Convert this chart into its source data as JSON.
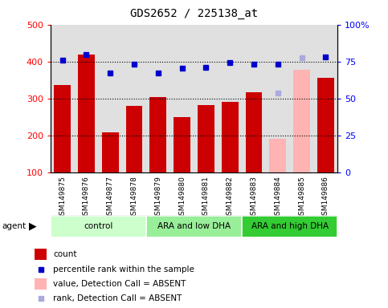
{
  "title": "GDS2652 / 225138_at",
  "samples": [
    "GSM149875",
    "GSM149876",
    "GSM149877",
    "GSM149878",
    "GSM149879",
    "GSM149880",
    "GSM149881",
    "GSM149882",
    "GSM149883",
    "GSM149884",
    "GSM149885",
    "GSM149886"
  ],
  "counts": [
    336,
    420,
    209,
    281,
    305,
    250,
    283,
    290,
    317,
    null,
    null,
    357
  ],
  "counts_absent": [
    null,
    null,
    null,
    null,
    null,
    null,
    null,
    null,
    null,
    191,
    378,
    null
  ],
  "percentile_ranks": [
    403,
    420,
    370,
    392,
    370,
    382,
    385,
    397,
    392,
    392,
    null,
    413
  ],
  "percentile_ranks_absent": [
    null,
    null,
    null,
    null,
    null,
    null,
    null,
    null,
    null,
    null,
    410,
    null
  ],
  "rank_absent": [
    null,
    null,
    null,
    null,
    null,
    null,
    null,
    null,
    null,
    316,
    null,
    null
  ],
  "groups": [
    {
      "label": "control",
      "start": 0,
      "end": 3,
      "color": "#ccffcc"
    },
    {
      "label": "ARA and low DHA",
      "start": 4,
      "end": 7,
      "color": "#99ee99"
    },
    {
      "label": "ARA and high DHA",
      "start": 8,
      "end": 11,
      "color": "#33cc33"
    }
  ],
  "ylim_left": [
    100,
    500
  ],
  "ylim_right": [
    0,
    100
  ],
  "bar_color": "#cc0000",
  "bar_absent_color": "#ffb3b3",
  "dot_color": "#0000cc",
  "dot_absent_color": "#aaaadd",
  "grid_color": "#000000",
  "plot_bg_color": "#e0e0e0",
  "sample_bg_color": "#c8c8c8",
  "legend_items": [
    {
      "label": "count",
      "color": "#cc0000",
      "type": "bar"
    },
    {
      "label": "percentile rank within the sample",
      "color": "#0000cc",
      "type": "dot"
    },
    {
      "label": "value, Detection Call = ABSENT",
      "color": "#ffb3b3",
      "type": "bar"
    },
    {
      "label": "rank, Detection Call = ABSENT",
      "color": "#aaaadd",
      "type": "dot"
    }
  ],
  "left_yticks": [
    100,
    200,
    300,
    400,
    500
  ],
  "right_yticks": [
    0,
    25,
    50,
    75,
    100
  ],
  "right_ytick_labels": [
    "0",
    "25",
    "50",
    "75",
    "100%"
  ]
}
